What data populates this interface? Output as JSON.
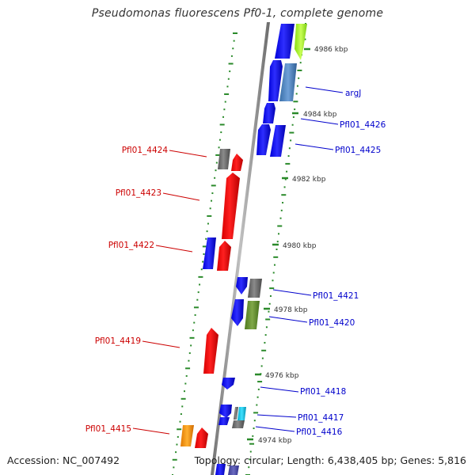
{
  "title": "Pseudomonas fluorescens Pf0-1, complete genome",
  "footer": {
    "accession": "Accession: NC_007492",
    "topology": "Topology: circular; Length: 6,438,405 bp; Genes: 5,816"
  },
  "colors": {
    "backbone": "#8a8a8a",
    "tick": "#2a8a2a",
    "forward_gene_label": "#cc0000",
    "reverse_gene_label": "#0000cc",
    "scale_text": "#333333"
  },
  "scale_labels": [
    {
      "text": "4986 kbp"
    },
    {
      "text": "4984 kbp"
    },
    {
      "text": "4982 kbp"
    },
    {
      "text": "4980 kbp"
    },
    {
      "text": "4978 kbp"
    },
    {
      "text": "4976 kbp"
    },
    {
      "text": "4974 kbp"
    }
  ],
  "gene_labels": [
    {
      "text": "argJ",
      "strand": "reverse"
    },
    {
      "text": "Pfl01_4426",
      "strand": "reverse"
    },
    {
      "text": "Pfl01_4425",
      "strand": "reverse"
    },
    {
      "text": "Pfl01_4424",
      "strand": "forward"
    },
    {
      "text": "Pfl01_4423",
      "strand": "forward"
    },
    {
      "text": "Pfl01_4422",
      "strand": "forward"
    },
    {
      "text": "Pfl01_4421",
      "strand": "reverse"
    },
    {
      "text": "Pfl01_4420",
      "strand": "reverse"
    },
    {
      "text": "Pfl01_4419",
      "strand": "forward"
    },
    {
      "text": "Pfl01_4418",
      "strand": "reverse"
    },
    {
      "text": "Pfl01_4417",
      "strand": "reverse"
    },
    {
      "text": "Pfl01_4416",
      "strand": "reverse"
    },
    {
      "text": "Pfl01_4415",
      "strand": "forward"
    }
  ]
}
